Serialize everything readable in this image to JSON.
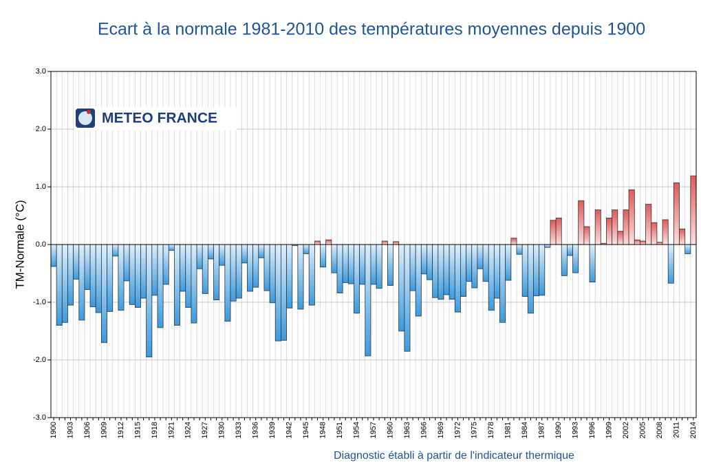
{
  "chart_data": {
    "type": "bar",
    "title": "Ecart à la normale 1981-2010 des températures moyennes depuis 1900",
    "logo": "METEO FRANCE",
    "ylabel": "TM-Normale (°C)",
    "xlabel": "Diagnostic établi à partir de l'indicateur thermique",
    "categories": [
      "1900",
      null,
      null,
      "1903",
      null,
      null,
      "1906",
      null,
      null,
      "1909",
      null,
      null,
      "1912",
      null,
      null,
      "1915",
      null,
      null,
      "1918",
      null,
      null,
      "1921",
      null,
      null,
      "1924",
      null,
      null,
      "1927",
      null,
      null,
      "1930",
      null,
      null,
      "1933",
      null,
      null,
      "1936",
      null,
      null,
      "1939",
      null,
      null,
      "1942",
      null,
      null,
      "1945",
      null,
      null,
      "1948",
      null,
      null,
      "1951",
      null,
      null,
      "1954",
      null,
      null,
      "1957",
      null,
      null,
      "1960",
      null,
      null,
      "1963",
      null,
      null,
      "1966",
      null,
      null,
      "1969",
      null,
      null,
      "1972",
      null,
      null,
      "1975",
      null,
      null,
      "1978",
      null,
      null,
      "1981",
      null,
      null,
      "1984",
      null,
      null,
      "1987",
      null,
      null,
      "1990",
      null,
      null,
      "1993",
      null,
      null,
      "1996",
      null,
      null,
      "1999",
      null,
      null,
      "2002",
      null,
      null,
      "2005",
      null,
      null,
      "2008",
      null,
      null,
      "2011",
      null,
      null,
      "2014"
    ],
    "values": [
      -0.38,
      -1.4,
      -1.35,
      -1.05,
      -0.6,
      -1.31,
      -0.78,
      -1.08,
      -1.18,
      -1.7,
      -1.16,
      -0.2,
      -1.14,
      -0.63,
      -1.04,
      -1.09,
      -0.93,
      -1.95,
      -0.88,
      -1.44,
      -0.69,
      -0.1,
      -1.4,
      -0.81,
      -1.09,
      -1.36,
      -0.42,
      -0.85,
      -0.25,
      -0.96,
      -0.36,
      -1.33,
      -0.98,
      -0.93,
      -0.32,
      -0.81,
      -0.74,
      -0.23,
      -0.8,
      -1.01,
      -1.67,
      -1.66,
      -1.1,
      -0.02,
      -1.12,
      -0.16,
      -1.05,
      0.06,
      -0.39,
      0.08,
      -0.49,
      -0.84,
      -0.66,
      -0.68,
      -1.19,
      -0.69,
      -1.93,
      -0.69,
      -0.76,
      0.06,
      -0.71,
      0.05,
      -1.5,
      -1.85,
      -0.8,
      -1.24,
      -0.51,
      -0.61,
      -0.92,
      -0.95,
      -0.87,
      -0.95,
      -1.17,
      -0.9,
      -0.64,
      -0.75,
      -0.42,
      -0.64,
      -1.14,
      -0.93,
      -1.35,
      -0.62,
      0.11,
      -0.17,
      -0.9,
      -1.19,
      -0.89,
      -0.88,
      -0.05,
      0.42,
      0.46,
      -0.54,
      -0.19,
      -0.49,
      0.76,
      0.31,
      -0.65,
      0.6,
      0.02,
      0.46,
      0.6,
      0.23,
      0.6,
      0.95,
      0.08,
      0.06,
      0.7,
      0.38,
      0.04,
      0.43,
      -0.67,
      1.07,
      0.27,
      -0.16,
      1.19
    ],
    "colors": {
      "negative": "#3a9ae0",
      "positive": "#e05a5a"
    },
    "ylim": [
      -3,
      3
    ],
    "yticks": [
      {
        "value": -3,
        "label": "-3.0"
      },
      {
        "value": -2,
        "label": "-2.0"
      },
      {
        "value": -1,
        "label": "-1.0"
      },
      {
        "value": 0,
        "label": "0.0"
      },
      {
        "value": 1,
        "label": "1.0"
      },
      {
        "value": 2,
        "label": "2.0"
      },
      {
        "value": 3,
        "label": "3.0"
      }
    ],
    "grid": true
  }
}
